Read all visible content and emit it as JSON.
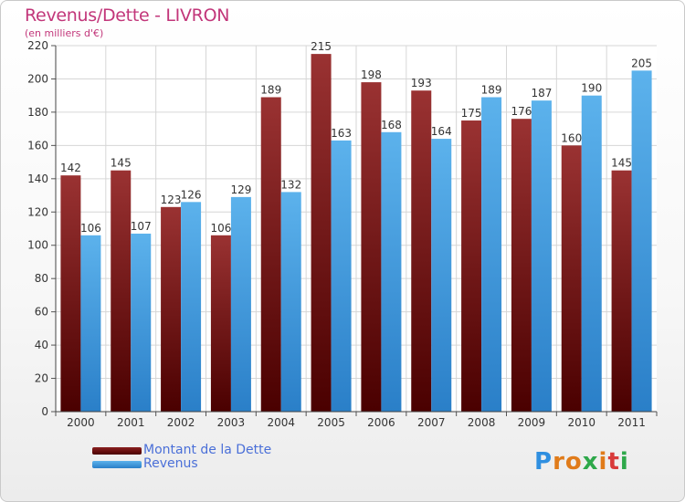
{
  "chart_data": {
    "type": "bar",
    "title": "Revenus/Dette - LIVRON",
    "subtitle": "(en milliers d'€)",
    "categories": [
      "2000",
      "2001",
      "2002",
      "2003",
      "2004",
      "2005",
      "2006",
      "2007",
      "2008",
      "2009",
      "2010",
      "2011"
    ],
    "series": [
      {
        "name": "Montant de la Dette",
        "values": [
          142,
          145,
          123,
          106,
          189,
          215,
          198,
          193,
          175,
          176,
          160,
          145
        ],
        "color": "#7a1515"
      },
      {
        "name": "Revenus",
        "values": [
          106,
          107,
          126,
          129,
          132,
          163,
          168,
          164,
          189,
          187,
          190,
          205
        ],
        "color": "#3a96dc"
      }
    ],
    "ylim": [
      0,
      220
    ],
    "yticks": [
      0,
      20,
      40,
      60,
      80,
      100,
      120,
      140,
      160,
      180,
      200,
      220
    ],
    "grid": true,
    "legend_position": "bottom-left"
  },
  "logo": {
    "letters": [
      "P",
      "r",
      "o",
      "x",
      "i",
      "t",
      "i"
    ],
    "colors": [
      "#2f8fe0",
      "#e07b1a",
      "#e07b1a",
      "#2ea84a",
      "#e07b1a",
      "#d83a3a",
      "#2ea84a"
    ]
  }
}
